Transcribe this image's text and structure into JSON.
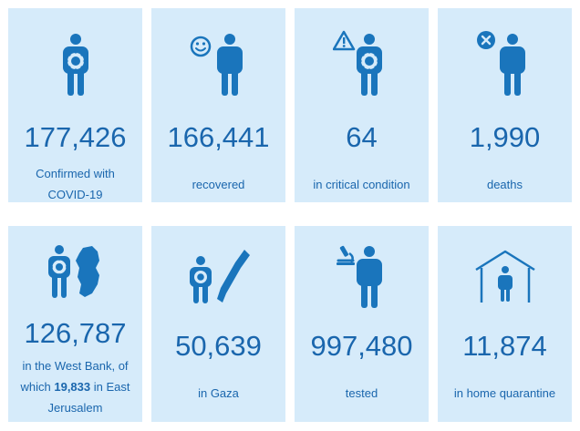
{
  "colors": {
    "card_bg": "#d6ebfa",
    "accent": "#1a66ad",
    "icon": "#1a75bc"
  },
  "stats": [
    {
      "value": "177,426",
      "label_line1": "Confirmed with",
      "label_line2": "COVID-19",
      "icon": "virus-person-icon"
    },
    {
      "value": "166,441",
      "label_line1": "recovered",
      "icon": "smiling-person-icon"
    },
    {
      "value": "64",
      "label_line1": "in critical condition",
      "icon": "warning-person-icon"
    },
    {
      "value": "1,990",
      "label_line1": "deaths",
      "icon": "cross-person-icon"
    },
    {
      "value": "126,787",
      "label_line1": "in the West Bank, of",
      "label_line2_pre": "which ",
      "label_line2_bold": "19,833",
      "label_line2_post": " in East",
      "label_line3": "Jerusalem",
      "icon": "west-bank-map-icon"
    },
    {
      "value": "50,639",
      "label_line1": "in Gaza",
      "icon": "gaza-map-icon"
    },
    {
      "value": "997,480",
      "label_line1": "tested",
      "icon": "microscope-person-icon"
    },
    {
      "value": "11,874",
      "label_line1": "in home quarantine",
      "icon": "house-person-icon"
    }
  ]
}
